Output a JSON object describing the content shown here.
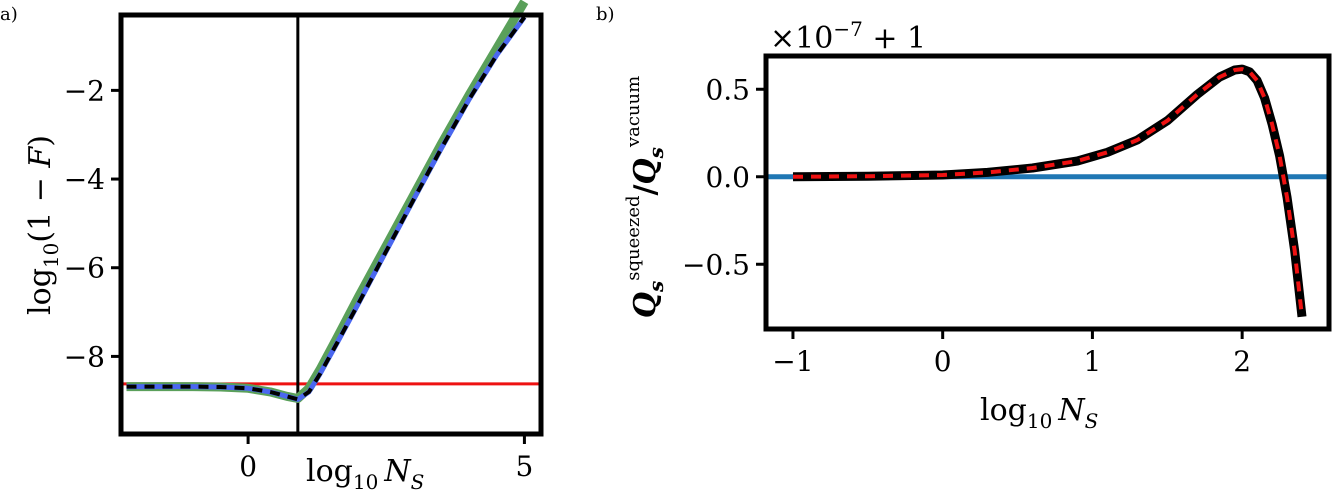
{
  "chart_data": [
    {
      "panel_label": "a)",
      "type": "line",
      "xlabel": "log10 N_S",
      "ylabel": "log10(1 − F)",
      "xlim": [
        -2.3,
        5.3
      ],
      "ylim": [
        -9.75,
        -0.3
      ],
      "xticks": [
        0,
        5
      ],
      "xtick_labels": [
        "0",
        "5"
      ],
      "yticks": [
        -2,
        -4,
        -6,
        -8
      ],
      "ytick_labels": [
        "−2",
        "−4",
        "−6",
        "−8"
      ],
      "vline_x": 0.9,
      "hline_y": -8.62,
      "grid": false,
      "legend": "none",
      "colors": {
        "green": "#5aa05a",
        "blue": "#4a67f0",
        "black": "#000000",
        "red": "#ee1111"
      },
      "series": [
        {
          "color": "#5aa05a",
          "style": "solid-thick",
          "x": [
            -2.2,
            -1.5,
            -1.0,
            -0.5,
            0.0,
            0.4,
            0.7,
            0.9,
            1.1,
            1.3,
            1.6,
            2.0,
            2.5,
            3.0,
            3.5,
            4.0,
            4.5,
            5.0
          ],
          "y": [
            -8.68,
            -8.68,
            -8.68,
            -8.69,
            -8.72,
            -8.8,
            -8.9,
            -8.95,
            -8.72,
            -8.3,
            -7.6,
            -6.65,
            -5.5,
            -4.35,
            -3.2,
            -2.1,
            -1.05,
            0.0
          ]
        },
        {
          "color": "#4a67f0",
          "style": "solid",
          "x": [
            -2.2,
            -1.5,
            -1.0,
            -0.5,
            0.0,
            0.4,
            0.7,
            0.9,
            1.1,
            1.3,
            1.6,
            2.0,
            2.5,
            3.0,
            3.5,
            4.0,
            4.5,
            5.0
          ],
          "y": [
            -8.68,
            -8.68,
            -8.68,
            -8.69,
            -8.72,
            -8.8,
            -8.9,
            -8.97,
            -8.8,
            -8.4,
            -7.72,
            -6.8,
            -5.62,
            -4.45,
            -3.3,
            -2.2,
            -1.2,
            -0.35
          ]
        },
        {
          "color": "#000000",
          "style": "dashed",
          "x": [
            -2.2,
            -1.5,
            -1.0,
            -0.5,
            0.0,
            0.4,
            0.7,
            0.9,
            1.1,
            1.3,
            1.6,
            2.0,
            2.5,
            3.0,
            3.5,
            4.0,
            4.5,
            5.0
          ],
          "y": [
            -8.68,
            -8.68,
            -8.68,
            -8.69,
            -8.72,
            -8.8,
            -8.9,
            -8.97,
            -8.8,
            -8.4,
            -7.72,
            -6.8,
            -5.62,
            -4.45,
            -3.3,
            -2.2,
            -1.2,
            -0.35
          ]
        }
      ]
    },
    {
      "panel_label": "b)",
      "type": "line",
      "xlabel": "log10 N_S",
      "ylabel": "Q_s^squeezed / Q_s^vacuum",
      "offset_text": "×10−7 + 1",
      "xlim": [
        -1.18,
        2.58
      ],
      "ylim": [
        -0.87,
        0.69
      ],
      "xticks": [
        -1,
        0,
        1,
        2
      ],
      "xtick_labels": [
        "−1",
        "0",
        "1",
        "2"
      ],
      "yticks": [
        0.5,
        0.0,
        -0.5
      ],
      "ytick_labels": [
        "0.5",
        "0.0",
        "−0.5"
      ],
      "grid": false,
      "legend": "none",
      "colors": {
        "blue": "#1f77b4",
        "black": "#000000",
        "red": "#ee1111"
      },
      "series": [
        {
          "color": "#1f77b4",
          "style": "solid",
          "x": [
            -1.18,
            2.58
          ],
          "y": [
            0.0,
            0.0
          ]
        },
        {
          "color": "#000000",
          "style": "solid-thick",
          "x": [
            -1.0,
            -0.5,
            0.0,
            0.3,
            0.6,
            0.9,
            1.1,
            1.3,
            1.5,
            1.7,
            1.85,
            1.95,
            2.0,
            2.05,
            2.1,
            2.15,
            2.2,
            2.25,
            2.3,
            2.35,
            2.4
          ],
          "y": [
            0.0,
            0.003,
            0.01,
            0.025,
            0.05,
            0.09,
            0.14,
            0.21,
            0.32,
            0.47,
            0.57,
            0.61,
            0.615,
            0.6,
            0.55,
            0.45,
            0.3,
            0.12,
            -0.12,
            -0.42,
            -0.8
          ]
        },
        {
          "color": "#ee1111",
          "style": "dashed",
          "x": [
            -1.0,
            -0.5,
            0.0,
            0.3,
            0.6,
            0.9,
            1.1,
            1.3,
            1.5,
            1.7,
            1.85,
            1.95,
            2.0,
            2.05,
            2.1,
            2.15,
            2.2,
            2.25,
            2.3,
            2.35,
            2.4
          ],
          "y": [
            0.0,
            0.003,
            0.01,
            0.025,
            0.05,
            0.09,
            0.14,
            0.21,
            0.32,
            0.47,
            0.57,
            0.61,
            0.615,
            0.6,
            0.55,
            0.45,
            0.3,
            0.12,
            -0.12,
            -0.42,
            -0.8
          ]
        }
      ]
    }
  ]
}
